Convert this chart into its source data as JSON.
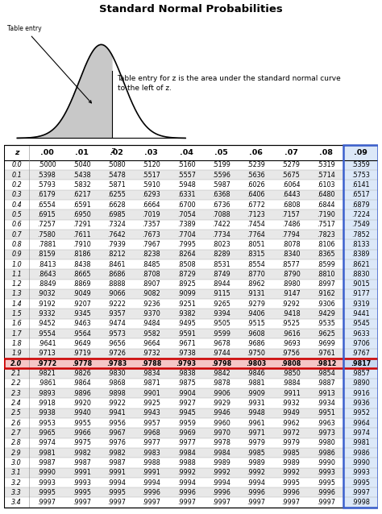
{
  "title": "Standard Normal Probabilities",
  "subtitle": "Table entry for z is the area under the standard normal curve\nto the left of z.",
  "col_headers": [
    "z",
    ".00",
    ".01",
    ".02",
    ".03",
    ".04",
    ".05",
    ".06",
    ".07",
    ".08",
    ".09"
  ],
  "rows": [
    [
      "0.0",
      ".5000",
      ".5040",
      ".5080",
      ".5120",
      ".5160",
      ".5199",
      ".5239",
      ".5279",
      ".5319",
      ".5359"
    ],
    [
      "0.1",
      ".5398",
      ".5438",
      ".5478",
      ".5517",
      ".5557",
      ".5596",
      ".5636",
      ".5675",
      ".5714",
      ".5753"
    ],
    [
      "0.2",
      ".5793",
      ".5832",
      ".5871",
      ".5910",
      ".5948",
      ".5987",
      ".6026",
      ".6064",
      ".6103",
      ".6141"
    ],
    [
      "0.3",
      ".6179",
      ".6217",
      ".6255",
      ".6293",
      ".6331",
      ".6368",
      ".6406",
      ".6443",
      ".6480",
      ".6517"
    ],
    [
      "0.4",
      ".6554",
      ".6591",
      ".6628",
      ".6664",
      ".6700",
      ".6736",
      ".6772",
      ".6808",
      ".6844",
      ".6879"
    ],
    [
      "0.5",
      ".6915",
      ".6950",
      ".6985",
      ".7019",
      ".7054",
      ".7088",
      ".7123",
      ".7157",
      ".7190",
      ".7224"
    ],
    [
      "0.6",
      ".7257",
      ".7291",
      ".7324",
      ".7357",
      ".7389",
      ".7422",
      ".7454",
      ".7486",
      ".7517",
      ".7549"
    ],
    [
      "0.7",
      ".7580",
      ".7611",
      ".7642",
      ".7673",
      ".7704",
      ".7734",
      ".7764",
      ".7794",
      ".7823",
      ".7852"
    ],
    [
      "0.8",
      ".7881",
      ".7910",
      ".7939",
      ".7967",
      ".7995",
      ".8023",
      ".8051",
      ".8078",
      ".8106",
      ".8133"
    ],
    [
      "0.9",
      ".8159",
      ".8186",
      ".8212",
      ".8238",
      ".8264",
      ".8289",
      ".8315",
      ".8340",
      ".8365",
      ".8389"
    ],
    [
      "1.0",
      ".8413",
      ".8438",
      ".8461",
      ".8485",
      ".8508",
      ".8531",
      ".8554",
      ".8577",
      ".8599",
      ".8621"
    ],
    [
      "1.1",
      ".8643",
      ".8665",
      ".8686",
      ".8708",
      ".8729",
      ".8749",
      ".8770",
      ".8790",
      ".8810",
      ".8830"
    ],
    [
      "1.2",
      ".8849",
      ".8869",
      ".8888",
      ".8907",
      ".8925",
      ".8944",
      ".8962",
      ".8980",
      ".8997",
      ".9015"
    ],
    [
      "1.3",
      ".9032",
      ".9049",
      ".9066",
      ".9082",
      ".9099",
      ".9115",
      ".9131",
      ".9147",
      ".9162",
      ".9177"
    ],
    [
      "1.4",
      ".9192",
      ".9207",
      ".9222",
      ".9236",
      ".9251",
      ".9265",
      ".9279",
      ".9292",
      ".9306",
      ".9319"
    ],
    [
      "1.5",
      ".9332",
      ".9345",
      ".9357",
      ".9370",
      ".9382",
      ".9394",
      ".9406",
      ".9418",
      ".9429",
      ".9441"
    ],
    [
      "1.6",
      ".9452",
      ".9463",
      ".9474",
      ".9484",
      ".9495",
      ".9505",
      ".9515",
      ".9525",
      ".9535",
      ".9545"
    ],
    [
      "1.7",
      ".9554",
      ".9564",
      ".9573",
      ".9582",
      ".9591",
      ".9599",
      ".9608",
      ".9616",
      ".9625",
      ".9633"
    ],
    [
      "1.8",
      ".9641",
      ".9649",
      ".9656",
      ".9664",
      ".9671",
      ".9678",
      ".9686",
      ".9693",
      ".9699",
      ".9706"
    ],
    [
      "1.9",
      ".9713",
      ".9719",
      ".9726",
      ".9732",
      ".9738",
      ".9744",
      ".9750",
      ".9756",
      ".9761",
      ".9767"
    ],
    [
      "2.0",
      ".9772",
      ".9778",
      ".9783",
      ".9788",
      ".9793",
      ".9798",
      ".9803",
      ".9808",
      ".9812",
      ".9817"
    ],
    [
      "2.1",
      ".9821",
      ".9826",
      ".9830",
      ".9834",
      ".9838",
      ".9842",
      ".9846",
      ".9850",
      ".9854",
      ".9857"
    ],
    [
      "2.2",
      ".9861",
      ".9864",
      ".9868",
      ".9871",
      ".9875",
      ".9878",
      ".9881",
      ".9884",
      ".9887",
      ".9890"
    ],
    [
      "2.3",
      ".9893",
      ".9896",
      ".9898",
      ".9901",
      ".9904",
      ".9906",
      ".9909",
      ".9911",
      ".9913",
      ".9916"
    ],
    [
      "2.4",
      ".9918",
      ".9920",
      ".9922",
      ".9925",
      ".9927",
      ".9929",
      ".9931",
      ".9932",
      ".9934",
      ".9936"
    ],
    [
      "2.5",
      ".9938",
      ".9940",
      ".9941",
      ".9943",
      ".9945",
      ".9946",
      ".9948",
      ".9949",
      ".9951",
      ".9952"
    ],
    [
      "2.6",
      ".9953",
      ".9955",
      ".9956",
      ".9957",
      ".9959",
      ".9960",
      ".9961",
      ".9962",
      ".9963",
      ".9964"
    ],
    [
      "2.7",
      ".9965",
      ".9966",
      ".9967",
      ".9968",
      ".9969",
      ".9970",
      ".9971",
      ".9972",
      ".9973",
      ".9974"
    ],
    [
      "2.8",
      ".9974",
      ".9975",
      ".9976",
      ".9977",
      ".9977",
      ".9978",
      ".9979",
      ".9979",
      ".9980",
      ".9981"
    ],
    [
      "2.9",
      ".9981",
      ".9982",
      ".9982",
      ".9983",
      ".9984",
      ".9984",
      ".9985",
      ".9985",
      ".9986",
      ".9986"
    ],
    [
      "3.0",
      ".9987",
      ".9987",
      ".9987",
      ".9988",
      ".9988",
      ".9989",
      ".9989",
      ".9989",
      ".9990",
      ".9990"
    ],
    [
      "3.1",
      ".9990",
      ".9991",
      ".9991",
      ".9991",
      ".9992",
      ".9992",
      ".9992",
      ".9992",
      ".9993",
      ".9993"
    ],
    [
      "3.2",
      ".9993",
      ".9993",
      ".9994",
      ".9994",
      ".9994",
      ".9994",
      ".9994",
      ".9995",
      ".9995",
      ".9995"
    ],
    [
      "3.3",
      ".9995",
      ".9995",
      ".9995",
      ".9996",
      ".9996",
      ".9996",
      ".9996",
      ".9996",
      ".9996",
      ".9997"
    ],
    [
      "3.4",
      ".9997",
      ".9997",
      ".9997",
      ".9997",
      ".9997",
      ".9997",
      ".9997",
      ".9997",
      ".9997",
      ".9998"
    ]
  ],
  "highlighted_row": 20,
  "highlighted_row_color": "#f5c6c6",
  "col09_bg": "#dce8f8",
  "col09_highlight_bg": "#c8d8f0",
  "stripe_color": "#e8e8e8",
  "background_color": "#ffffff",
  "red_border": "#cc0000",
  "blue_border": "#3a5fcd",
  "curve_fill": "#c8c8c8",
  "curve_line": "#000000"
}
